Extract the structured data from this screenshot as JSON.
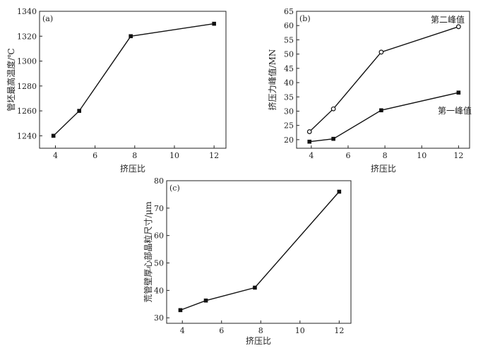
{
  "chart_data": [
    {
      "type": "line",
      "panel_label": "(a)",
      "xlabel": "挤压比",
      "ylabel": "管坯最高温度/℃",
      "xlim": [
        3.2,
        12.6
      ],
      "ylim": [
        1230,
        1340
      ],
      "xticks": [
        4,
        6,
        8,
        10,
        12
      ],
      "yticks": [
        1240,
        1260,
        1280,
        1300,
        1320,
        1340
      ],
      "series": [
        {
          "marker": "square",
          "x": [
            3.9,
            5.2,
            7.8,
            12.0
          ],
          "y": [
            1240,
            1260,
            1320,
            1330
          ]
        }
      ]
    },
    {
      "type": "line",
      "panel_label": "(b)",
      "xlabel": "挤压比",
      "ylabel": "挤压力峰值/MN",
      "xlim": [
        3.2,
        12.6
      ],
      "ylim": [
        17,
        65
      ],
      "xticks": [
        4,
        6,
        8,
        10,
        12
      ],
      "yticks": [
        20,
        25,
        30,
        35,
        40,
        45,
        50,
        55,
        60,
        65
      ],
      "series": [
        {
          "name": "第二峰值",
          "marker": "circle",
          "x": [
            3.9,
            5.2,
            7.8,
            12.0
          ],
          "y": [
            22.8,
            30.8,
            50.7,
            59.6
          ]
        },
        {
          "name": "第一峰值",
          "marker": "square",
          "x": [
            3.9,
            5.2,
            7.8,
            12.0
          ],
          "y": [
            19.3,
            20.3,
            30.3,
            36.5
          ]
        }
      ]
    },
    {
      "type": "line",
      "panel_label": "(c)",
      "xlabel": "挤压比",
      "ylabel": "荒管壁厚心部晶粒尺寸/μm",
      "xlim": [
        3.2,
        12.6
      ],
      "ylim": [
        28,
        80
      ],
      "xticks": [
        4,
        6,
        8,
        10,
        12
      ],
      "yticks": [
        30,
        40,
        50,
        60,
        70,
        80
      ],
      "series": [
        {
          "marker": "square",
          "x": [
            3.9,
            5.2,
            7.7,
            12.0
          ],
          "y": [
            32.8,
            36.3,
            41.0,
            76.0
          ]
        }
      ]
    }
  ]
}
